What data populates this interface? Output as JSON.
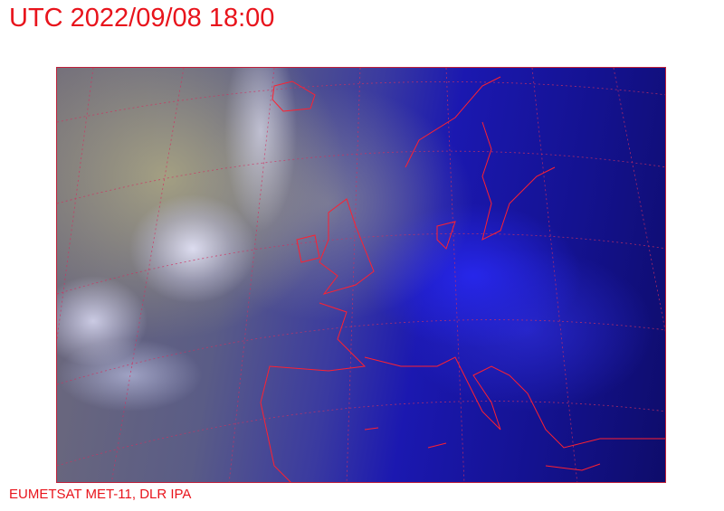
{
  "title": "UTC 2022/09/08 18:00",
  "credit": "EUMETSAT MET-11, DLR IPA",
  "colors": {
    "text": "#e8141c",
    "coastline": "#ff2030",
    "graticule": "#d03060"
  }
}
